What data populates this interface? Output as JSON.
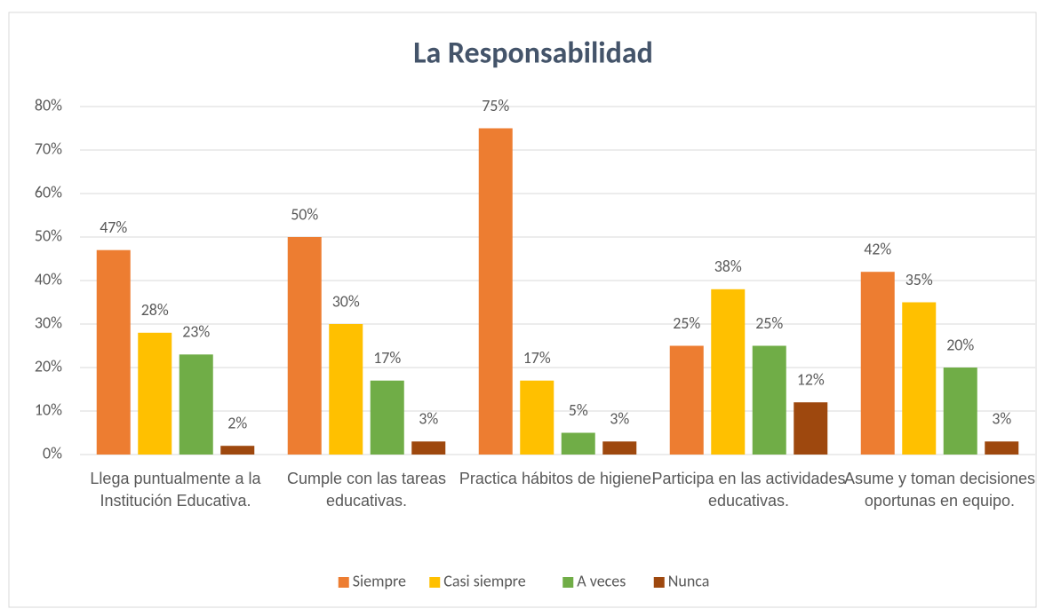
{
  "chart_data": {
    "type": "bar",
    "title": "La Responsabilidad",
    "categories": [
      "Llega puntualmente a la Institución Educativa.",
      "Cumple con las tareas educativas.",
      "Practica hábitos de higiene.",
      "Participa en las actividades educativas.",
      "Asume y  toman decisiones oportunas en equipo."
    ],
    "series": [
      {
        "name": "Siempre",
        "color": "#ed7d31",
        "values": [
          47,
          50,
          75,
          25,
          42
        ],
        "value_labels": [
          "47%",
          "50%",
          "75%",
          "25%",
          "42%"
        ]
      },
      {
        "name": "Casi siempre",
        "color": "#ffc000",
        "values": [
          28,
          30,
          17,
          38,
          35
        ],
        "value_labels": [
          "28%",
          "30%",
          "17%",
          "38%",
          "35%"
        ]
      },
      {
        "name": "A veces",
        "color": "#70ad47",
        "values": [
          23,
          17,
          5,
          25,
          20
        ],
        "value_labels": [
          "23%",
          "17%",
          "5%",
          "25%",
          "20%"
        ]
      },
      {
        "name": "Nunca",
        "color": "#9e480e",
        "values": [
          2,
          3,
          3,
          12,
          3
        ],
        "value_labels": [
          "2%",
          "3%",
          "3%",
          "12%",
          "3%"
        ]
      }
    ],
    "ylim": [
      0,
      80
    ],
    "yticks": [
      {
        "value": 0,
        "label": "0%"
      },
      {
        "value": 10,
        "label": "10%"
      },
      {
        "value": 20,
        "label": "20%"
      },
      {
        "value": 30,
        "label": "30%"
      },
      {
        "value": 40,
        "label": "40%"
      },
      {
        "value": 50,
        "label": "50%"
      },
      {
        "value": 60,
        "label": "60%"
      },
      {
        "value": 70,
        "label": "70%"
      },
      {
        "value": 80,
        "label": "80%"
      }
    ],
    "grid": true,
    "legend": "bottom"
  }
}
